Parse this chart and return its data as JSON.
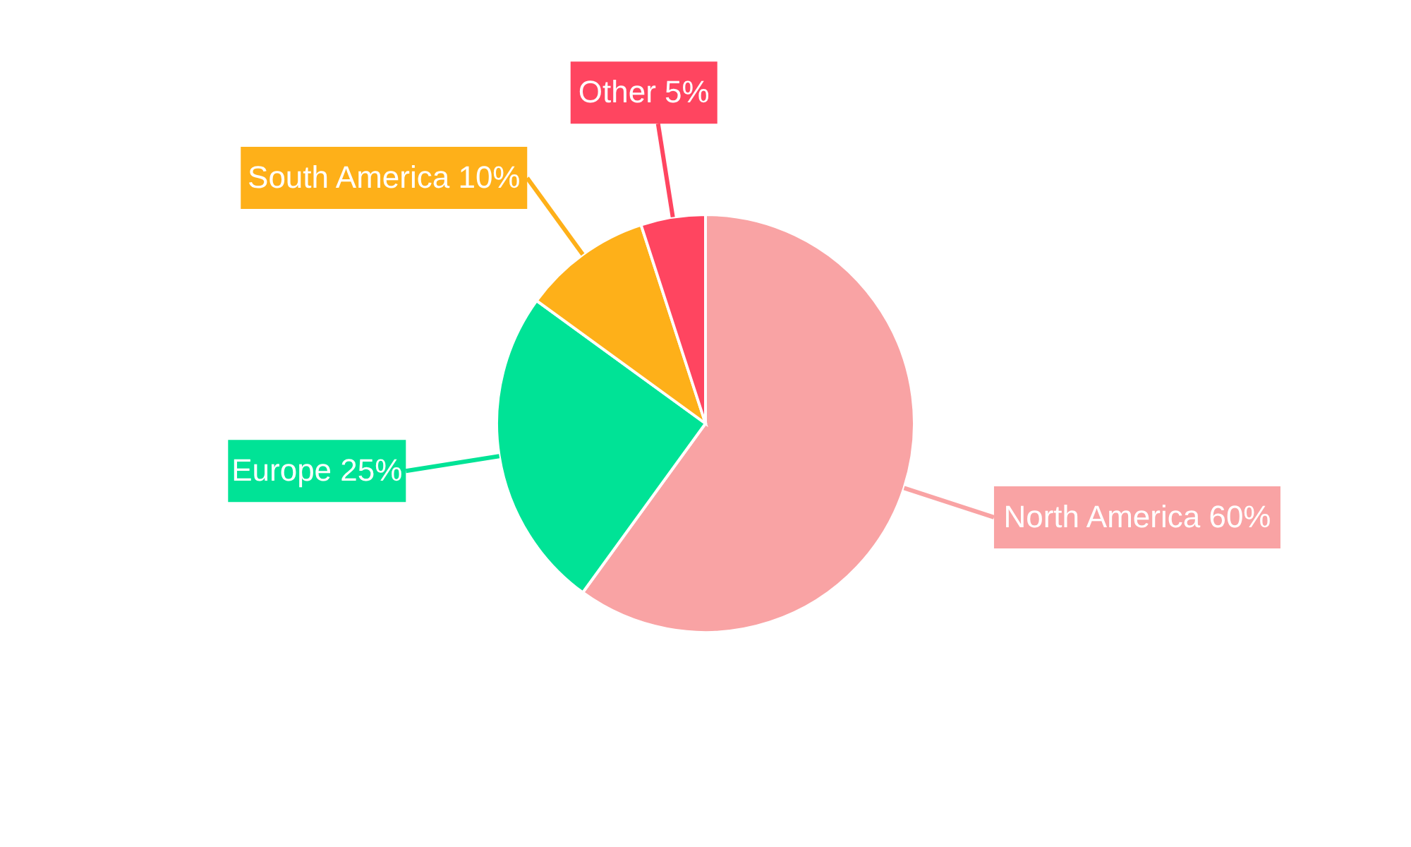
{
  "chart_data": {
    "type": "pie",
    "categories": [
      "North America",
      "Europe",
      "South America",
      "Other"
    ],
    "values": [
      60,
      25,
      10,
      5
    ],
    "colors": [
      "#f9a3a4",
      "#00e396",
      "#feb019",
      "#ff4560"
    ],
    "value_labels": [
      "60%",
      "25%",
      "10%",
      "5%"
    ]
  }
}
